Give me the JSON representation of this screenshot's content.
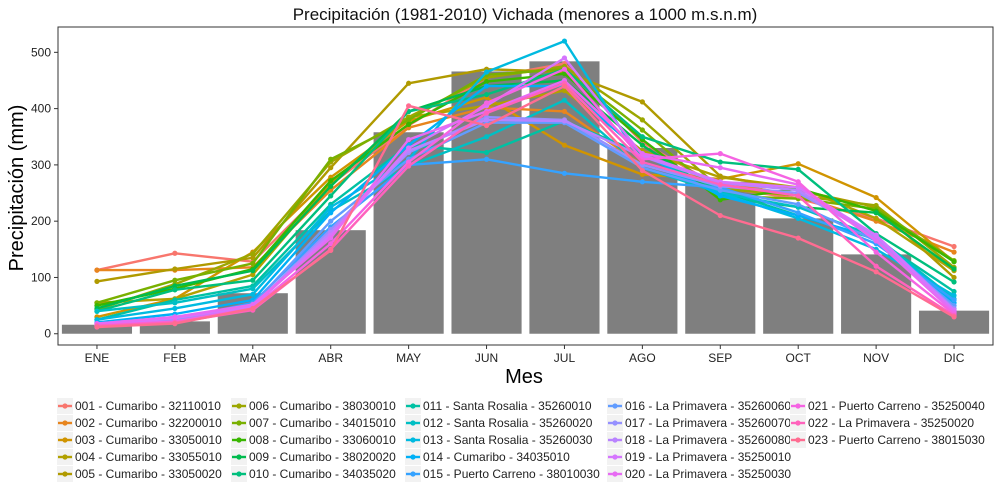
{
  "chart_data": {
    "type": "bar",
    "title": "Precipitación (1981-2010) Vichada (menores a 1000 m.s.n.m)",
    "xlabel": "Mes",
    "ylabel": "Precipitación (mm)",
    "ylim": [
      -20,
      545
    ],
    "yticks": [
      0,
      100,
      200,
      300,
      400,
      500
    ],
    "grid": false,
    "legend_position": "bottom",
    "bar_color": "#7f7f7f",
    "categories": [
      "ENE",
      "FEB",
      "MAR",
      "ABR",
      "MAY",
      "JUN",
      "JUL",
      "AGO",
      "SEP",
      "OCT",
      "NOV",
      "DIC"
    ],
    "values": [
      16,
      22,
      72,
      184,
      358,
      466,
      484,
      330,
      270,
      205,
      141,
      41
    ],
    "series": [
      {
        "name": "001 - Cumaribo - 32110010",
        "color": "#F8766D",
        "values": [
          113,
          143,
          128,
          265,
          370,
          455,
          480,
          340,
          260,
          240,
          205,
          155
        ]
      },
      {
        "name": "002 - Cumaribo - 32200010",
        "color": "#E7851E",
        "values": [
          113,
          113,
          118,
          255,
          366,
          402,
          395,
          300,
          270,
          245,
          200,
          145
        ]
      },
      {
        "name": "003 - Cumaribo - 33050010",
        "color": "#D09400",
        "values": [
          30,
          62,
          145,
          278,
          378,
          420,
          335,
          283,
          275,
          302,
          242,
          128
        ]
      },
      {
        "name": "004 - Cumaribo - 33055010",
        "color": "#B2A100",
        "values": [
          55,
          62,
          105,
          268,
          385,
          405,
          432,
          325,
          278,
          260,
          205,
          112
        ]
      },
      {
        "name": "005 - Cumaribo - 33050020",
        "color": "#B09A00",
        "values": [
          93,
          115,
          135,
          295,
          445,
          470,
          465,
          412,
          280,
          255,
          225,
          100
        ]
      },
      {
        "name": "006 - Cumaribo - 38030010",
        "color": "#9CA700",
        "values": [
          43,
          88,
          142,
          305,
          385,
          455,
          475,
          380,
          258,
          245,
          228,
          118
        ]
      },
      {
        "name": "007 - Cumaribo - 34015010",
        "color": "#79B000",
        "values": [
          55,
          95,
          125,
          310,
          380,
          460,
          470,
          362,
          245,
          240,
          222,
          130
        ]
      },
      {
        "name": "008 - Cumaribo - 33060010",
        "color": "#39B600",
        "values": [
          50,
          80,
          115,
          272,
          372,
          448,
          462,
          345,
          238,
          258,
          218,
          128
        ]
      },
      {
        "name": "009 - Cumaribo - 38020020",
        "color": "#00BB4E",
        "values": [
          45,
          85,
          112,
          262,
          395,
          440,
          450,
          335,
          245,
          225,
          215,
          115
        ]
      },
      {
        "name": "010 - Cumaribo - 34035020",
        "color": "#00BF7D",
        "values": [
          40,
          78,
          95,
          245,
          395,
          425,
          470,
          350,
          305,
          292,
          178,
          92
        ]
      },
      {
        "name": "011 - Santa Rosalia - 35260010",
        "color": "#00C1A3",
        "values": [
          25,
          60,
          85,
          230,
          335,
          322,
          378,
          320,
          255,
          210,
          168,
          75
        ]
      },
      {
        "name": "012 - Santa Rosalia - 35260020",
        "color": "#00BFC4",
        "values": [
          40,
          55,
          80,
          218,
          298,
          350,
          415,
          295,
          250,
          225,
          172,
          62
        ]
      },
      {
        "name": "013 - Santa Rosalia - 35260030",
        "color": "#00BAE0",
        "values": [
          25,
          45,
          70,
          225,
          310,
          465,
          520,
          305,
          250,
          205,
          150,
          68
        ]
      },
      {
        "name": "014 - Cumaribo - 34035010",
        "color": "#00B0F6",
        "values": [
          20,
          35,
          60,
          215,
          335,
          440,
          440,
          320,
          245,
          210,
          170,
          55
        ]
      },
      {
        "name": "015 - Puerto Carreno - 38010030",
        "color": "#35A2FF",
        "values": [
          15,
          25,
          55,
          190,
          300,
          310,
          285,
          270,
          260,
          215,
          160,
          60
        ]
      },
      {
        "name": "016 - La Primavera - 35260060",
        "color": "#619CFF",
        "values": [
          12,
          28,
          52,
          200,
          310,
          375,
          375,
          295,
          255,
          230,
          165,
          50
        ]
      },
      {
        "name": "017 - La Primavera - 35260070",
        "color": "#9590FF",
        "values": [
          15,
          25,
          48,
          185,
          322,
          385,
          380,
          300,
          262,
          250,
          175,
          45
        ]
      },
      {
        "name": "018 - La Primavera - 35260080",
        "color": "#B983FF",
        "values": [
          18,
          30,
          50,
          180,
          325,
          380,
          378,
          315,
          268,
          255,
          170,
          40
        ]
      },
      {
        "name": "019 - La Primavera - 35250010",
        "color": "#D575FE",
        "values": [
          15,
          28,
          48,
          175,
          330,
          405,
          490,
          318,
          270,
          260,
          175,
          42
        ]
      },
      {
        "name": "020 - La Primavera - 35250030",
        "color": "#E76BF3",
        "values": [
          18,
          30,
          52,
          170,
          345,
          395,
          450,
          320,
          295,
          265,
          165,
          38
        ]
      },
      {
        "name": "021 - Puerto Carreno - 35250040",
        "color": "#F564E3",
        "values": [
          15,
          22,
          45,
          160,
          305,
          410,
          470,
          310,
          320,
          270,
          145,
          35
        ]
      },
      {
        "name": "022 - La Primavera - 35250020",
        "color": "#FF62BC",
        "values": [
          14,
          20,
          42,
          150,
          298,
          392,
          445,
          305,
          265,
          245,
          120,
          32
        ]
      },
      {
        "name": "023 - Puerto Carreno - 38015030",
        "color": "#FF6C91",
        "values": [
          12,
          18,
          45,
          148,
          405,
          370,
          440,
          290,
          210,
          170,
          110,
          30
        ]
      }
    ]
  }
}
